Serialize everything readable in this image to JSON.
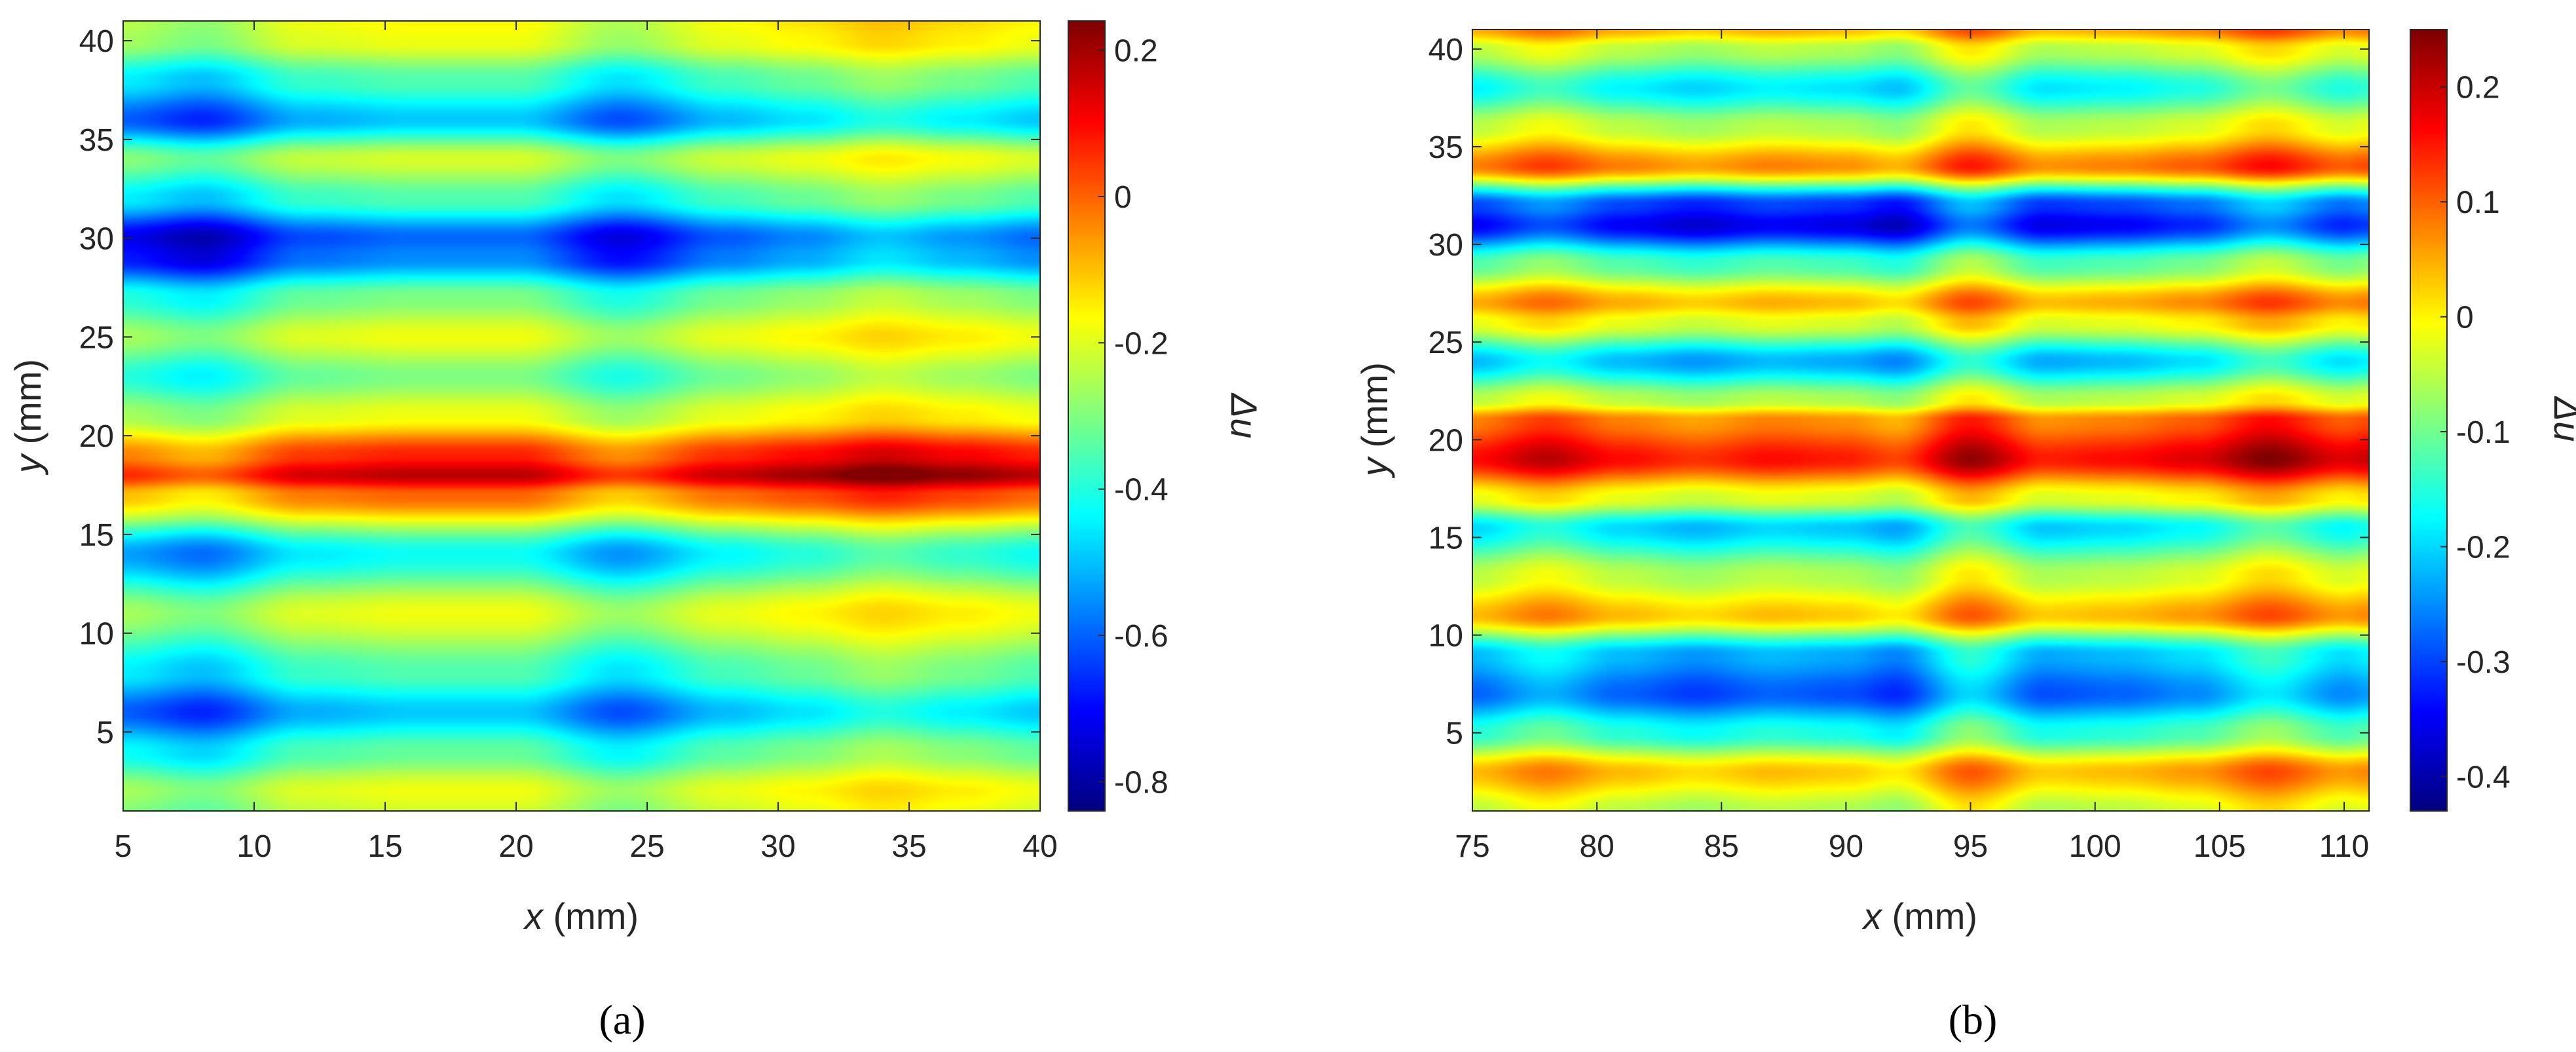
{
  "chart_data": [
    {
      "type": "heatmap",
      "panel_label": "(a)",
      "xlabel_var": "x",
      "xlabel_unit": " (mm)",
      "ylabel_var": "y",
      "ylabel_unit": " (mm)",
      "colorbar_label": "Δu",
      "xlim": [
        5,
        40
      ],
      "ylim": [
        1,
        41
      ],
      "x_ticks": [
        5,
        10,
        15,
        20,
        25,
        30,
        35,
        40
      ],
      "y_ticks": [
        5,
        10,
        15,
        20,
        25,
        30,
        35,
        40
      ],
      "clim": [
        -0.84,
        0.24
      ],
      "colorbar_ticks": [
        "0.2",
        "0",
        "-0.2",
        "-0.4",
        "-0.6",
        "-0.8"
      ],
      "colorbar_tick_values": [
        0.2,
        0,
        -0.2,
        -0.4,
        -0.6,
        -0.8
      ],
      "colormap": "jet",
      "row_profile": {
        "y": [
          1,
          2,
          4,
          6,
          8,
          11,
          14,
          17,
          18,
          19,
          21,
          23,
          25,
          27,
          29,
          30,
          32,
          34,
          36,
          38,
          40,
          41
        ],
        "value": [
          -0.25,
          -0.22,
          -0.38,
          -0.55,
          -0.4,
          -0.22,
          -0.48,
          -0.05,
          0.12,
          0.02,
          -0.22,
          -0.35,
          -0.22,
          -0.35,
          -0.62,
          -0.66,
          -0.4,
          -0.25,
          -0.55,
          -0.4,
          -0.22,
          -0.2
        ]
      },
      "column_profile": {
        "x": [
          5,
          8,
          12,
          16,
          20,
          24,
          28,
          31,
          34,
          37,
          40
        ],
        "value": [
          -0.04,
          -0.08,
          0.02,
          0.04,
          0.04,
          -0.05,
          0.03,
          0.06,
          0.1,
          0.07,
          0.04
        ]
      }
    },
    {
      "type": "heatmap",
      "panel_label": "(b)",
      "xlabel_var": "x",
      "xlabel_unit": " (mm)",
      "ylabel_var": "y",
      "ylabel_unit": " (mm)",
      "colorbar_label": "Δu",
      "xlim": [
        75,
        111
      ],
      "ylim": [
        1,
        41
      ],
      "x_ticks": [
        75,
        80,
        85,
        90,
        95,
        100,
        105,
        110
      ],
      "y_ticks": [
        5,
        10,
        15,
        20,
        25,
        30,
        35,
        40
      ],
      "clim": [
        -0.43,
        0.25
      ],
      "colorbar_ticks": [
        "0.2",
        "0.1",
        "0",
        "-0.1",
        "-0.2",
        "-0.3",
        "-0.4"
      ],
      "colorbar_tick_values": [
        0.2,
        0.1,
        0,
        -0.1,
        -0.2,
        -0.3,
        -0.4
      ],
      "colormap": "jet",
      "row_profile": {
        "y": [
          1,
          3,
          5,
          7,
          9,
          11,
          13,
          15.5,
          17,
          19,
          21,
          22,
          24,
          26,
          27,
          29,
          31,
          32,
          34,
          36,
          38,
          40,
          41
        ],
        "value": [
          -0.05,
          0.04,
          -0.15,
          -0.28,
          -0.22,
          0.04,
          -0.05,
          -0.2,
          -0.02,
          0.16,
          0.08,
          -0.05,
          -0.22,
          -0.02,
          0.05,
          -0.12,
          -0.35,
          -0.3,
          0.08,
          -0.05,
          -0.18,
          -0.05,
          0.05
        ]
      },
      "column_profile": {
        "x": [
          75,
          78,
          81,
          84,
          87,
          90,
          92,
          95,
          98,
          101,
          104,
          107,
          110,
          111
        ],
        "value": [
          0.0,
          0.04,
          0.0,
          -0.02,
          0.0,
          -0.01,
          -0.03,
          0.06,
          -0.01,
          0.0,
          0.02,
          0.07,
          0.02,
          0.03
        ]
      }
    }
  ]
}
